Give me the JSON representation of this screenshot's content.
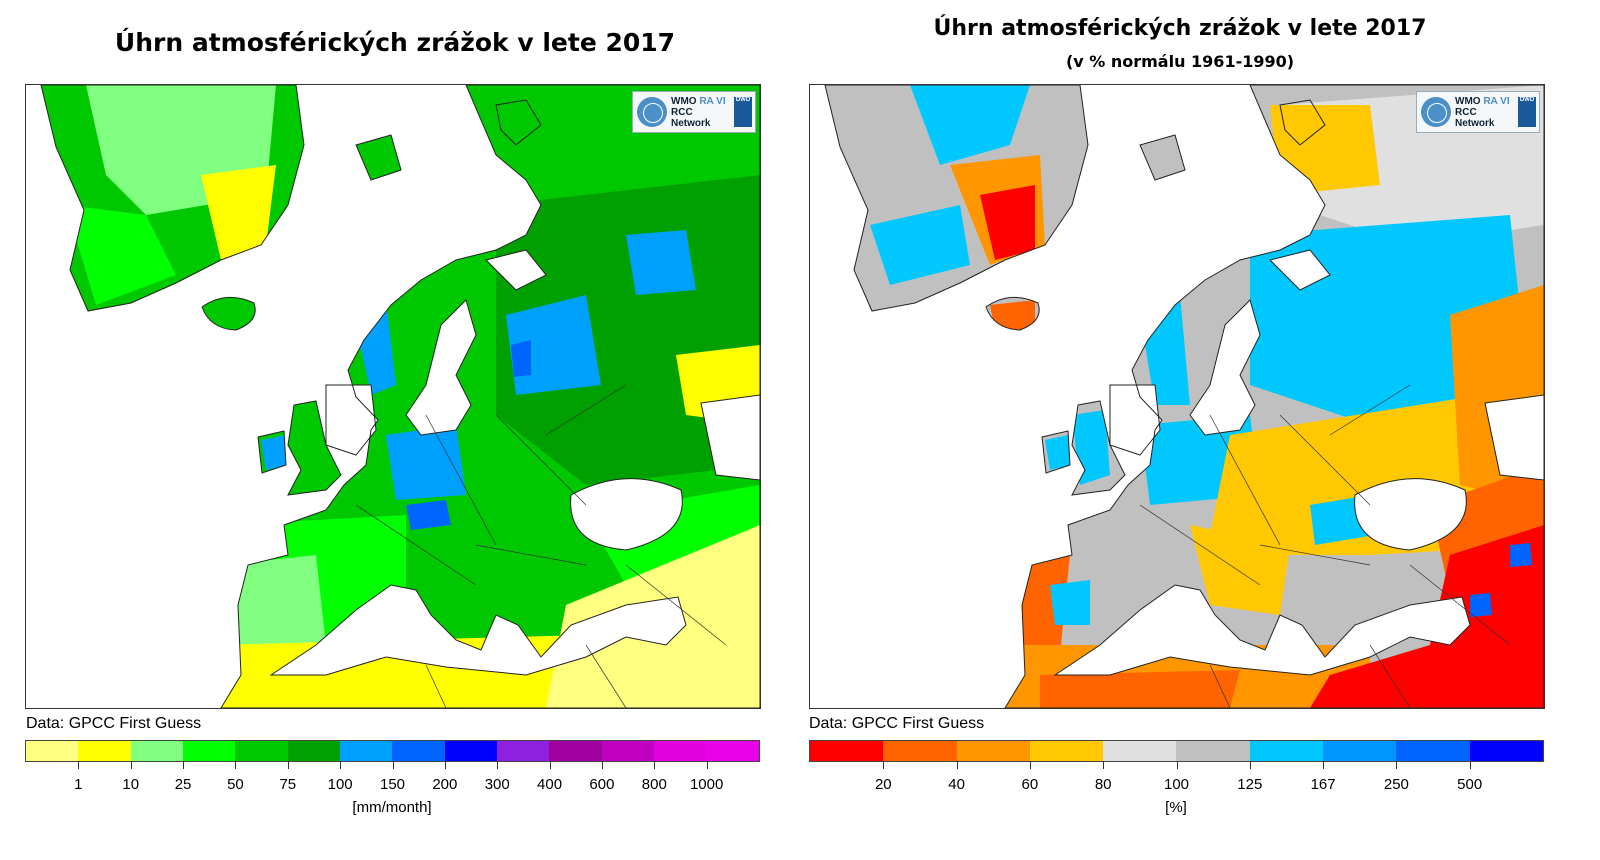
{
  "left_panel": {
    "title": "Úhrn atmosférických zrážok v lete 2017",
    "source": "Data: GPCC First Guess",
    "logo": {
      "line1": "WMO",
      "line1b": "RA VI",
      "line2": "RCC Network",
      "badge": "DWD"
    },
    "colorbar": {
      "colors": [
        "#ffff80",
        "#ffff00",
        "#80ff80",
        "#00ff00",
        "#00c800",
        "#00a000",
        "#00a0ff",
        "#0064ff",
        "#0000ff",
        "#9020e0",
        "#a000a0",
        "#c000c0",
        "#e000e0",
        "#e800e8"
      ],
      "ticks": [
        "1",
        "10",
        "25",
        "50",
        "75",
        "100",
        "150",
        "200",
        "300",
        "400",
        "600",
        "800",
        "1000"
      ],
      "unit": "[mm/month]"
    }
  },
  "right_panel": {
    "title": "Úhrn atmosférických zrážok v lete 2017",
    "subtitle": "(v % normálu 1961-1990)",
    "source": "Data: GPCC First Guess",
    "logo": {
      "line1": "WMO",
      "line1b": "RA VI",
      "line2": "RCC Network",
      "badge": "DWD"
    },
    "colorbar": {
      "colors": [
        "#ff0000",
        "#ff6400",
        "#ff9600",
        "#ffc800",
        "#e0e0e0",
        "#c0c0c0",
        "#00c8ff",
        "#0096ff",
        "#0064ff",
        "#0000ff"
      ],
      "ticks": [
        "20",
        "40",
        "60",
        "80",
        "100",
        "125",
        "167",
        "250",
        "500"
      ],
      "unit": "[%]"
    }
  }
}
